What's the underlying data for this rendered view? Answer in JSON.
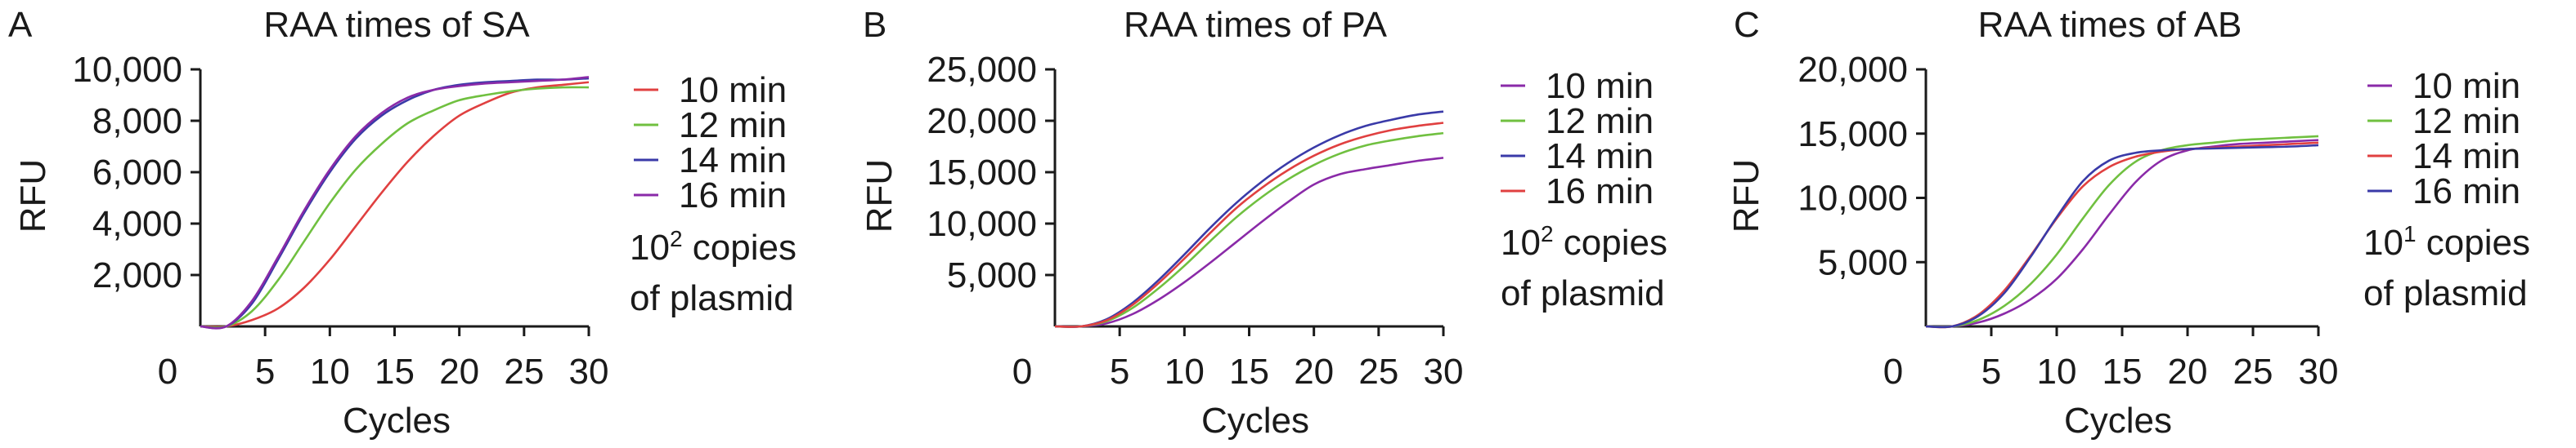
{
  "chart_data": [
    {
      "type": "line",
      "panel": "A",
      "title": "RAA times of SA",
      "xlabel": "Cycles",
      "ylabel": "RFU",
      "xlim": [
        0,
        30
      ],
      "ylim": [
        0,
        10000
      ],
      "xticks": [
        "0",
        "5",
        "10",
        "15",
        "20",
        "25",
        "30"
      ],
      "yticks": [
        "2,000",
        "4,000",
        "6,000",
        "8,000",
        "10,000"
      ],
      "x": [
        0,
        2,
        4,
        6,
        8,
        10,
        12,
        14,
        16,
        18,
        20,
        22,
        24,
        26,
        28,
        30
      ],
      "series": [
        {
          "name": "10 min",
          "color": "#e04040",
          "values": [
            0,
            0,
            250,
            700,
            1500,
            2600,
            3900,
            5200,
            6400,
            7400,
            8200,
            8700,
            9100,
            9300,
            9400,
            9500
          ]
        },
        {
          "name": "12 min",
          "color": "#70c040",
          "values": [
            0,
            0,
            600,
            1800,
            3300,
            4800,
            6100,
            7100,
            7900,
            8400,
            8800,
            9000,
            9150,
            9250,
            9300,
            9300
          ]
        },
        {
          "name": "14 min",
          "color": "#3a3aa8",
          "values": [
            0,
            0,
            900,
            2600,
            4400,
            6000,
            7300,
            8200,
            8800,
            9200,
            9400,
            9500,
            9550,
            9600,
            9600,
            9650
          ]
        },
        {
          "name": "16 min",
          "color": "#8a2aa8",
          "values": [
            0,
            0,
            1000,
            2700,
            4500,
            6100,
            7400,
            8300,
            8900,
            9200,
            9350,
            9450,
            9500,
            9550,
            9600,
            9700
          ]
        }
      ],
      "note": [
        "10",
        "2",
        " copies",
        "of plasmid"
      ]
    },
    {
      "type": "line",
      "panel": "B",
      "title": "RAA times of PA",
      "xlabel": "Cycles",
      "ylabel": "RFU",
      "xlim": [
        0,
        30
      ],
      "ylim": [
        0,
        25000
      ],
      "xticks": [
        "0",
        "5",
        "10",
        "15",
        "20",
        "25",
        "30"
      ],
      "yticks": [
        "5,000",
        "10,000",
        "15,000",
        "20,000",
        "25,000"
      ],
      "x": [
        0,
        2,
        4,
        6,
        8,
        10,
        12,
        14,
        16,
        18,
        20,
        22,
        24,
        26,
        28,
        30
      ],
      "series": [
        {
          "name": "10 min",
          "color": "#8a2aa8",
          "values": [
            0,
            0,
            300,
            1200,
            2600,
            4300,
            6200,
            8200,
            10200,
            12100,
            13800,
            14800,
            15300,
            15700,
            16100,
            16400
          ]
        },
        {
          "name": "12 min",
          "color": "#70c040",
          "values": [
            0,
            0,
            500,
            1800,
            3700,
            5900,
            8300,
            10600,
            12600,
            14300,
            15700,
            16800,
            17600,
            18100,
            18500,
            18800
          ]
        },
        {
          "name": "14 min",
          "color": "#3a3aa8",
          "values": [
            0,
            0,
            700,
            2300,
            4500,
            7000,
            9600,
            12000,
            14100,
            15900,
            17400,
            18600,
            19500,
            20100,
            20600,
            20900
          ]
        },
        {
          "name": "16 min",
          "color": "#e04040",
          "values": [
            0,
            0,
            600,
            2100,
            4200,
            6600,
            9100,
            11500,
            13500,
            15200,
            16600,
            17700,
            18500,
            19100,
            19500,
            19800
          ]
        }
      ],
      "note": [
        "10",
        "2",
        " copies",
        "of plasmid"
      ]
    },
    {
      "type": "line",
      "panel": "C",
      "title": "RAA times of AB",
      "xlabel": "Cycles",
      "ylabel": "RFU",
      "xlim": [
        0,
        30
      ],
      "ylim": [
        0,
        20000
      ],
      "xticks": [
        "0",
        "5",
        "10",
        "15",
        "20",
        "25",
        "30"
      ],
      "yticks": [
        "5,000",
        "10,000",
        "15,000",
        "20,000"
      ],
      "x": [
        0,
        2,
        4,
        6,
        8,
        10,
        12,
        14,
        16,
        18,
        20,
        22,
        24,
        26,
        28,
        30
      ],
      "series": [
        {
          "name": "10 min",
          "color": "#8a2aa8",
          "values": [
            0,
            0,
            300,
            1000,
            2100,
            3700,
            6000,
            8700,
            11200,
            12900,
            13700,
            14000,
            14200,
            14300,
            14400,
            14500
          ]
        },
        {
          "name": "12 min",
          "color": "#70c040",
          "values": [
            0,
            0,
            500,
            1600,
            3300,
            5600,
            8400,
            11000,
            12800,
            13700,
            14100,
            14300,
            14500,
            14600,
            14700,
            14800
          ]
        },
        {
          "name": "14 min",
          "color": "#e04040",
          "values": [
            0,
            0,
            900,
            2800,
            5500,
            8400,
            10900,
            12400,
            13200,
            13600,
            13800,
            13900,
            14000,
            14100,
            14200,
            14300
          ]
        },
        {
          "name": "16 min",
          "color": "#3a3aa8",
          "values": [
            0,
            0,
            800,
            2600,
            5400,
            8500,
            11300,
            12900,
            13500,
            13700,
            13800,
            13850,
            13900,
            13950,
            14000,
            14100
          ]
        }
      ],
      "note": [
        "10",
        "1",
        " copies",
        "of plasmid"
      ]
    }
  ]
}
